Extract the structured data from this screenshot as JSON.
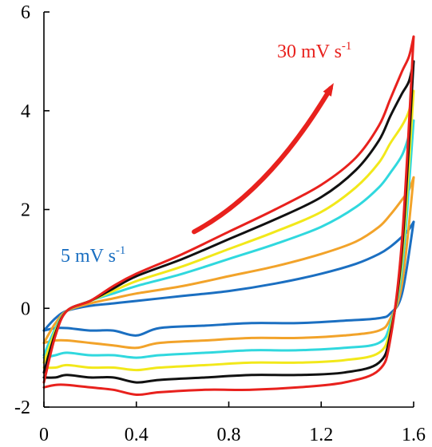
{
  "chart_data": {
    "type": "line",
    "title": "",
    "xlabel": "",
    "ylabel": "",
    "xlim": [
      0,
      1.6
    ],
    "ylim": [
      -2,
      6
    ],
    "x_ticks": [
      "0",
      "0.4",
      "0.8",
      "1.2",
      "1.6"
    ],
    "y_ticks": [
      "6",
      "4",
      "2",
      "0",
      "-2"
    ],
    "x_tick_values": [
      0,
      0.4,
      0.8,
      1.2,
      1.6
    ],
    "y_tick_values": [
      6,
      4,
      2,
      0,
      -2
    ],
    "grid": false,
    "legend": "none",
    "annotations": [
      {
        "text": "30 mV s",
        "superscript": "-1",
        "color": "#e8211d"
      },
      {
        "text": "5 mV s",
        "superscript": "-1",
        "color": "#1b6fc1"
      }
    ],
    "arrow": {
      "color": "#e8211d",
      "from": [
        0.65,
        1.55
      ],
      "to": [
        1.24,
        4.45
      ]
    },
    "series": [
      {
        "color": "#1b6fc1",
        "x_upper": [
          0,
          0.05,
          0.1,
          0.2,
          0.3,
          0.4,
          0.6,
          0.8,
          1.0,
          1.2,
          1.35,
          1.45,
          1.5,
          1.55,
          1.58,
          1.6
        ],
        "y_upper": [
          -0.45,
          -0.2,
          -0.05,
          0.05,
          0.1,
          0.15,
          0.25,
          0.35,
          0.5,
          0.7,
          0.9,
          1.1,
          1.25,
          1.45,
          1.6,
          1.75
        ],
        "x_lower": [
          1.6,
          1.55,
          1.5,
          1.45,
          1.3,
          1.1,
          0.9,
          0.7,
          0.5,
          0.4,
          0.3,
          0.2,
          0.1,
          0.05,
          0
        ],
        "y_lower": [
          1.75,
          0.3,
          -0.1,
          -0.2,
          -0.25,
          -0.3,
          -0.3,
          -0.35,
          -0.4,
          -0.55,
          -0.45,
          -0.45,
          -0.4,
          -0.4,
          -0.45
        ]
      },
      {
        "color": "#f2a32a",
        "x_upper": [
          0,
          0.05,
          0.1,
          0.2,
          0.3,
          0.4,
          0.6,
          0.8,
          1.0,
          1.2,
          1.35,
          1.45,
          1.5,
          1.55,
          1.58,
          1.6
        ],
        "y_upper": [
          -0.7,
          -0.3,
          -0.05,
          0.1,
          0.2,
          0.3,
          0.45,
          0.65,
          0.85,
          1.1,
          1.35,
          1.65,
          1.9,
          2.2,
          2.4,
          2.65
        ],
        "x_lower": [
          1.6,
          1.55,
          1.5,
          1.45,
          1.3,
          1.1,
          0.9,
          0.7,
          0.5,
          0.4,
          0.3,
          0.2,
          0.1,
          0.05,
          0
        ],
        "y_lower": [
          2.65,
          0.5,
          -0.2,
          -0.45,
          -0.55,
          -0.6,
          -0.6,
          -0.65,
          -0.7,
          -0.8,
          -0.75,
          -0.7,
          -0.65,
          -0.65,
          -0.7
        ]
      },
      {
        "color": "#30d8de",
        "x_upper": [
          0,
          0.05,
          0.1,
          0.2,
          0.3,
          0.4,
          0.6,
          0.8,
          1.0,
          1.2,
          1.35,
          1.45,
          1.5,
          1.55,
          1.58,
          1.6
        ],
        "y_upper": [
          -0.95,
          -0.4,
          -0.05,
          0.15,
          0.3,
          0.45,
          0.7,
          1.0,
          1.3,
          1.65,
          2.05,
          2.45,
          2.75,
          3.1,
          3.5,
          3.8
        ],
        "x_lower": [
          1.6,
          1.55,
          1.5,
          1.45,
          1.3,
          1.1,
          0.9,
          0.7,
          0.5,
          0.4,
          0.3,
          0.2,
          0.1,
          0.05,
          0
        ],
        "y_lower": [
          3.8,
          0.8,
          -0.3,
          -0.7,
          -0.8,
          -0.85,
          -0.85,
          -0.9,
          -0.95,
          -1.0,
          -0.95,
          -0.95,
          -0.9,
          -0.95,
          -1.0
        ]
      },
      {
        "color": "#f2e81a",
        "x_upper": [
          0,
          0.05,
          0.1,
          0.2,
          0.3,
          0.4,
          0.6,
          0.8,
          1.0,
          1.2,
          1.35,
          1.45,
          1.5,
          1.55,
          1.58,
          1.6
        ],
        "y_upper": [
          -1.1,
          -0.45,
          -0.05,
          0.15,
          0.35,
          0.55,
          0.85,
          1.2,
          1.55,
          1.95,
          2.45,
          2.95,
          3.35,
          3.7,
          4.0,
          4.4
        ],
        "x_lower": [
          1.6,
          1.55,
          1.5,
          1.45,
          1.3,
          1.1,
          0.9,
          0.7,
          0.5,
          0.4,
          0.3,
          0.2,
          0.1,
          0.05,
          0
        ],
        "y_lower": [
          4.4,
          1.0,
          -0.4,
          -0.9,
          -1.05,
          -1.1,
          -1.1,
          -1.15,
          -1.2,
          -1.25,
          -1.2,
          -1.2,
          -1.15,
          -1.2,
          -1.2
        ]
      },
      {
        "color": "#111111",
        "x_upper": [
          0,
          0.05,
          0.1,
          0.2,
          0.3,
          0.4,
          0.6,
          0.8,
          1.0,
          1.2,
          1.35,
          1.45,
          1.5,
          1.55,
          1.58,
          1.6
        ],
        "y_upper": [
          -1.3,
          -0.5,
          -0.05,
          0.15,
          0.4,
          0.65,
          1.0,
          1.4,
          1.8,
          2.25,
          2.8,
          3.4,
          3.9,
          4.35,
          4.6,
          5.0
        ],
        "x_lower": [
          1.6,
          1.55,
          1.5,
          1.45,
          1.3,
          1.1,
          0.9,
          0.7,
          0.5,
          0.4,
          0.3,
          0.2,
          0.1,
          0.05,
          0
        ],
        "y_lower": [
          5.0,
          1.2,
          -0.5,
          -1.1,
          -1.3,
          -1.35,
          -1.35,
          -1.4,
          -1.45,
          -1.5,
          -1.4,
          -1.4,
          -1.35,
          -1.4,
          -1.4
        ]
      },
      {
        "color": "#e8211d",
        "x_upper": [
          0,
          0.05,
          0.1,
          0.2,
          0.3,
          0.4,
          0.6,
          0.8,
          1.0,
          1.2,
          1.35,
          1.45,
          1.5,
          1.55,
          1.58,
          1.6
        ],
        "y_upper": [
          -1.5,
          -0.55,
          -0.05,
          0.15,
          0.45,
          0.7,
          1.1,
          1.55,
          2.0,
          2.5,
          3.05,
          3.7,
          4.25,
          4.8,
          5.1,
          5.5
        ],
        "x_lower": [
          1.6,
          1.55,
          1.5,
          1.45,
          1.3,
          1.1,
          0.9,
          0.7,
          0.5,
          0.4,
          0.3,
          0.2,
          0.1,
          0.05,
          0
        ],
        "y_lower": [
          5.5,
          1.4,
          -0.6,
          -1.25,
          -1.5,
          -1.6,
          -1.65,
          -1.65,
          -1.7,
          -1.75,
          -1.65,
          -1.6,
          -1.55,
          -1.55,
          -1.6
        ]
      }
    ]
  }
}
